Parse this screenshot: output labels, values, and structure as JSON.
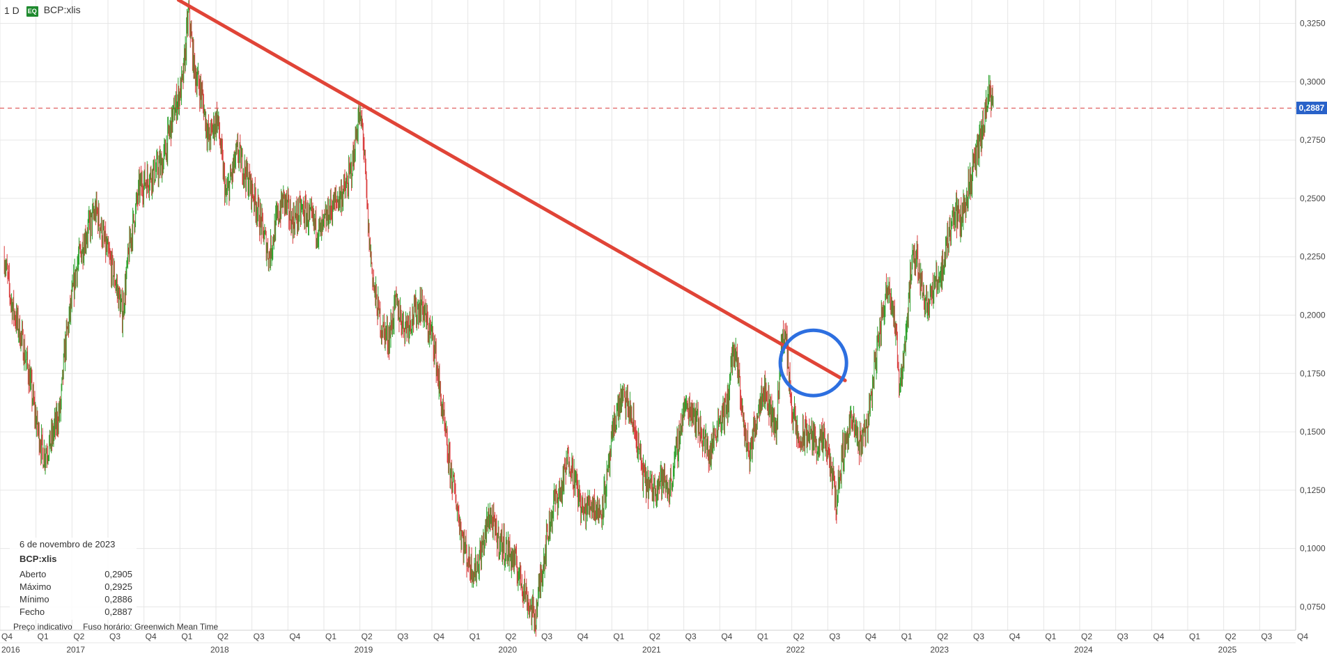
{
  "header": {
    "timeframe": "1 D",
    "badge": "EQ",
    "symbol": "BCP:xlis"
  },
  "info": {
    "date": "6 de novembro de 2023",
    "symbol": "BCP:xlis",
    "rows": [
      {
        "label": "Aberto",
        "value": "0,2905"
      },
      {
        "label": "Máximo",
        "value": "0,2925"
      },
      {
        "label": "Mínimo",
        "value": "0,2886"
      },
      {
        "label": "Fecho",
        "value": "0,2887"
      }
    ]
  },
  "footer": {
    "price_note": "Preço indicativo",
    "timezone": "Fuso horário: Greenwich Mean Time"
  },
  "last_price_label": "0,2887",
  "colors": {
    "up": "#2aa02a",
    "down": "#d93b3b",
    "trendline": "#e04437",
    "circle": "#2d6fe0",
    "flag": "#2962c9"
  },
  "chart_data": {
    "type": "candlestick",
    "title": "",
    "xlabel": "",
    "ylabel": "",
    "ylim": [
      0.065,
      0.335
    ],
    "xlim": [
      2016.78,
      2025.75
    ],
    "grid": true,
    "y_ticks": [
      "0,0750",
      "0,1000",
      "0,1250",
      "0,1500",
      "0,1750",
      "0,2000",
      "0,2250",
      "0,2500",
      "0,2750",
      "0,3000",
      "0,3250"
    ],
    "y_tick_values": [
      0.075,
      0.1,
      0.125,
      0.15,
      0.175,
      0.2,
      0.225,
      0.25,
      0.275,
      0.3,
      0.325
    ],
    "quarter_ticks": [
      {
        "t": 2016.75,
        "label": "Q4"
      },
      {
        "t": 2017.0,
        "label": "Q1"
      },
      {
        "t": 2017.25,
        "label": "Q2"
      },
      {
        "t": 2017.5,
        "label": "Q3"
      },
      {
        "t": 2017.75,
        "label": "Q4"
      },
      {
        "t": 2018.0,
        "label": "Q1"
      },
      {
        "t": 2018.25,
        "label": "Q2"
      },
      {
        "t": 2018.5,
        "label": "Q3"
      },
      {
        "t": 2018.75,
        "label": "Q4"
      },
      {
        "t": 2019.0,
        "label": "Q1"
      },
      {
        "t": 2019.25,
        "label": "Q2"
      },
      {
        "t": 2019.5,
        "label": "Q3"
      },
      {
        "t": 2019.75,
        "label": "Q4"
      },
      {
        "t": 2020.0,
        "label": "Q1"
      },
      {
        "t": 2020.25,
        "label": "Q2"
      },
      {
        "t": 2020.5,
        "label": "Q3"
      },
      {
        "t": 2020.75,
        "label": "Q4"
      },
      {
        "t": 2021.0,
        "label": "Q1"
      },
      {
        "t": 2021.25,
        "label": "Q2"
      },
      {
        "t": 2021.5,
        "label": "Q3"
      },
      {
        "t": 2021.75,
        "label": "Q4"
      },
      {
        "t": 2022.0,
        "label": "Q1"
      },
      {
        "t": 2022.25,
        "label": "Q2"
      },
      {
        "t": 2022.5,
        "label": "Q3"
      },
      {
        "t": 2022.75,
        "label": "Q4"
      },
      {
        "t": 2023.0,
        "label": "Q1"
      },
      {
        "t": 2023.25,
        "label": "Q2"
      },
      {
        "t": 2023.5,
        "label": "Q3"
      },
      {
        "t": 2023.75,
        "label": "Q4"
      },
      {
        "t": 2024.0,
        "label": "Q1"
      },
      {
        "t": 2024.25,
        "label": "Q2"
      },
      {
        "t": 2024.5,
        "label": "Q3"
      },
      {
        "t": 2024.75,
        "label": "Q4"
      },
      {
        "t": 2025.0,
        "label": "Q1"
      },
      {
        "t": 2025.25,
        "label": "Q2"
      },
      {
        "t": 2025.5,
        "label": "Q3"
      },
      {
        "t": 2025.75,
        "label": "Q4"
      }
    ],
    "year_ticks": [
      {
        "t": 2016.75,
        "label": "2016"
      },
      {
        "t": 2017.25,
        "label": "2017"
      },
      {
        "t": 2018.25,
        "label": "2018"
      },
      {
        "t": 2019.25,
        "label": "2019"
      },
      {
        "t": 2020.25,
        "label": "2020"
      },
      {
        "t": 2021.25,
        "label": "2021"
      },
      {
        "t": 2022.25,
        "label": "2022"
      },
      {
        "t": 2023.25,
        "label": "2023"
      },
      {
        "t": 2024.25,
        "label": "2024"
      },
      {
        "t": 2025.25,
        "label": "2025"
      }
    ],
    "series": [
      {
        "price_path": [
          [
            2016.78,
            0.225
          ],
          [
            2016.83,
            0.205
          ],
          [
            2016.9,
            0.19
          ],
          [
            2016.95,
            0.175
          ],
          [
            2017.0,
            0.155
          ],
          [
            2017.05,
            0.14
          ],
          [
            2017.1,
            0.145
          ],
          [
            2017.17,
            0.16
          ],
          [
            2017.2,
            0.185
          ],
          [
            2017.28,
            0.22
          ],
          [
            2017.35,
            0.235
          ],
          [
            2017.42,
            0.245
          ],
          [
            2017.48,
            0.23
          ],
          [
            2017.55,
            0.215
          ],
          [
            2017.6,
            0.2
          ],
          [
            2017.65,
            0.23
          ],
          [
            2017.72,
            0.255
          ],
          [
            2017.8,
            0.26
          ],
          [
            2017.88,
            0.265
          ],
          [
            2017.95,
            0.285
          ],
          [
            2018.02,
            0.3
          ],
          [
            2018.06,
            0.33
          ],
          [
            2018.1,
            0.305
          ],
          [
            2018.15,
            0.295
          ],
          [
            2018.2,
            0.275
          ],
          [
            2018.26,
            0.285
          ],
          [
            2018.32,
            0.25
          ],
          [
            2018.4,
            0.27
          ],
          [
            2018.46,
            0.26
          ],
          [
            2018.52,
            0.25
          ],
          [
            2018.58,
            0.235
          ],
          [
            2018.62,
            0.225
          ],
          [
            2018.67,
            0.24
          ],
          [
            2018.72,
            0.25
          ],
          [
            2018.78,
            0.24
          ],
          [
            2018.85,
            0.245
          ],
          [
            2018.92,
            0.24
          ],
          [
            2018.98,
            0.235
          ],
          [
            2019.04,
            0.245
          ],
          [
            2019.1,
            0.25
          ],
          [
            2019.16,
            0.255
          ],
          [
            2019.2,
            0.265
          ],
          [
            2019.24,
            0.285
          ],
          [
            2019.27,
            0.28
          ],
          [
            2019.31,
            0.235
          ],
          [
            2019.35,
            0.21
          ],
          [
            2019.4,
            0.195
          ],
          [
            2019.45,
            0.19
          ],
          [
            2019.5,
            0.205
          ],
          [
            2019.56,
            0.195
          ],
          [
            2019.62,
            0.2
          ],
          [
            2019.68,
            0.205
          ],
          [
            2019.72,
            0.195
          ],
          [
            2019.76,
            0.19
          ],
          [
            2019.8,
            0.17
          ],
          [
            2019.86,
            0.14
          ],
          [
            2019.92,
            0.12
          ],
          [
            2019.96,
            0.105
          ],
          [
            2020.0,
            0.095
          ],
          [
            2020.05,
            0.09
          ],
          [
            2020.1,
            0.1
          ],
          [
            2020.15,
            0.115
          ],
          [
            2020.2,
            0.105
          ],
          [
            2020.26,
            0.1
          ],
          [
            2020.32,
            0.095
          ],
          [
            2020.38,
            0.085
          ],
          [
            2020.43,
            0.075
          ],
          [
            2020.47,
            0.07
          ],
          [
            2020.5,
            0.085
          ],
          [
            2020.55,
            0.105
          ],
          [
            2020.6,
            0.12
          ],
          [
            2020.65,
            0.125
          ],
          [
            2020.7,
            0.14
          ],
          [
            2020.74,
            0.13
          ],
          [
            2020.8,
            0.115
          ],
          [
            2020.86,
            0.12
          ],
          [
            2020.92,
            0.115
          ],
          [
            2020.97,
            0.13
          ],
          [
            2021.02,
            0.155
          ],
          [
            2021.07,
            0.165
          ],
          [
            2021.12,
            0.16
          ],
          [
            2021.18,
            0.145
          ],
          [
            2021.22,
            0.13
          ],
          [
            2021.28,
            0.125
          ],
          [
            2021.34,
            0.13
          ],
          [
            2021.4,
            0.125
          ],
          [
            2021.46,
            0.145
          ],
          [
            2021.5,
            0.16
          ],
          [
            2021.56,
            0.16
          ],
          [
            2021.62,
            0.15
          ],
          [
            2021.68,
            0.14
          ],
          [
            2021.74,
            0.155
          ],
          [
            2021.8,
            0.16
          ],
          [
            2021.84,
            0.185
          ],
          [
            2021.88,
            0.175
          ],
          [
            2021.92,
            0.15
          ],
          [
            2021.96,
            0.14
          ],
          [
            2022.0,
            0.155
          ],
          [
            2022.05,
            0.17
          ],
          [
            2022.1,
            0.16
          ],
          [
            2022.14,
            0.15
          ],
          [
            2022.18,
            0.19
          ],
          [
            2022.21,
            0.19
          ],
          [
            2022.25,
            0.16
          ],
          [
            2022.3,
            0.145
          ],
          [
            2022.36,
            0.15
          ],
          [
            2022.42,
            0.145
          ],
          [
            2022.48,
            0.145
          ],
          [
            2022.52,
            0.135
          ],
          [
            2022.56,
            0.12
          ],
          [
            2022.6,
            0.14
          ],
          [
            2022.66,
            0.155
          ],
          [
            2022.72,
            0.145
          ],
          [
            2022.78,
            0.155
          ],
          [
            2022.84,
            0.185
          ],
          [
            2022.88,
            0.2
          ],
          [
            2022.92,
            0.215
          ],
          [
            2022.96,
            0.2
          ],
          [
            2023.0,
            0.17
          ],
          [
            2023.04,
            0.19
          ],
          [
            2023.08,
            0.22
          ],
          [
            2023.12,
            0.225
          ],
          [
            2023.16,
            0.21
          ],
          [
            2023.2,
            0.205
          ],
          [
            2023.26,
            0.215
          ],
          [
            2023.3,
            0.22
          ],
          [
            2023.34,
            0.235
          ],
          [
            2023.38,
            0.245
          ],
          [
            2023.42,
            0.24
          ],
          [
            2023.46,
            0.25
          ],
          [
            2023.5,
            0.26
          ],
          [
            2023.54,
            0.27
          ],
          [
            2023.58,
            0.28
          ],
          [
            2023.62,
            0.295
          ],
          [
            2023.65,
            0.2887
          ]
        ]
      }
    ],
    "trendline": {
      "from": {
        "t": 2017.99,
        "v": 0.335
      },
      "to": {
        "t": 2022.62,
        "v": 0.172
      }
    },
    "highlight_ellipse": {
      "center": {
        "t": 2022.4,
        "v": 0.1795
      },
      "rx_years": 0.23,
      "ry_value": 0.014
    },
    "last_price": 0.2887
  }
}
